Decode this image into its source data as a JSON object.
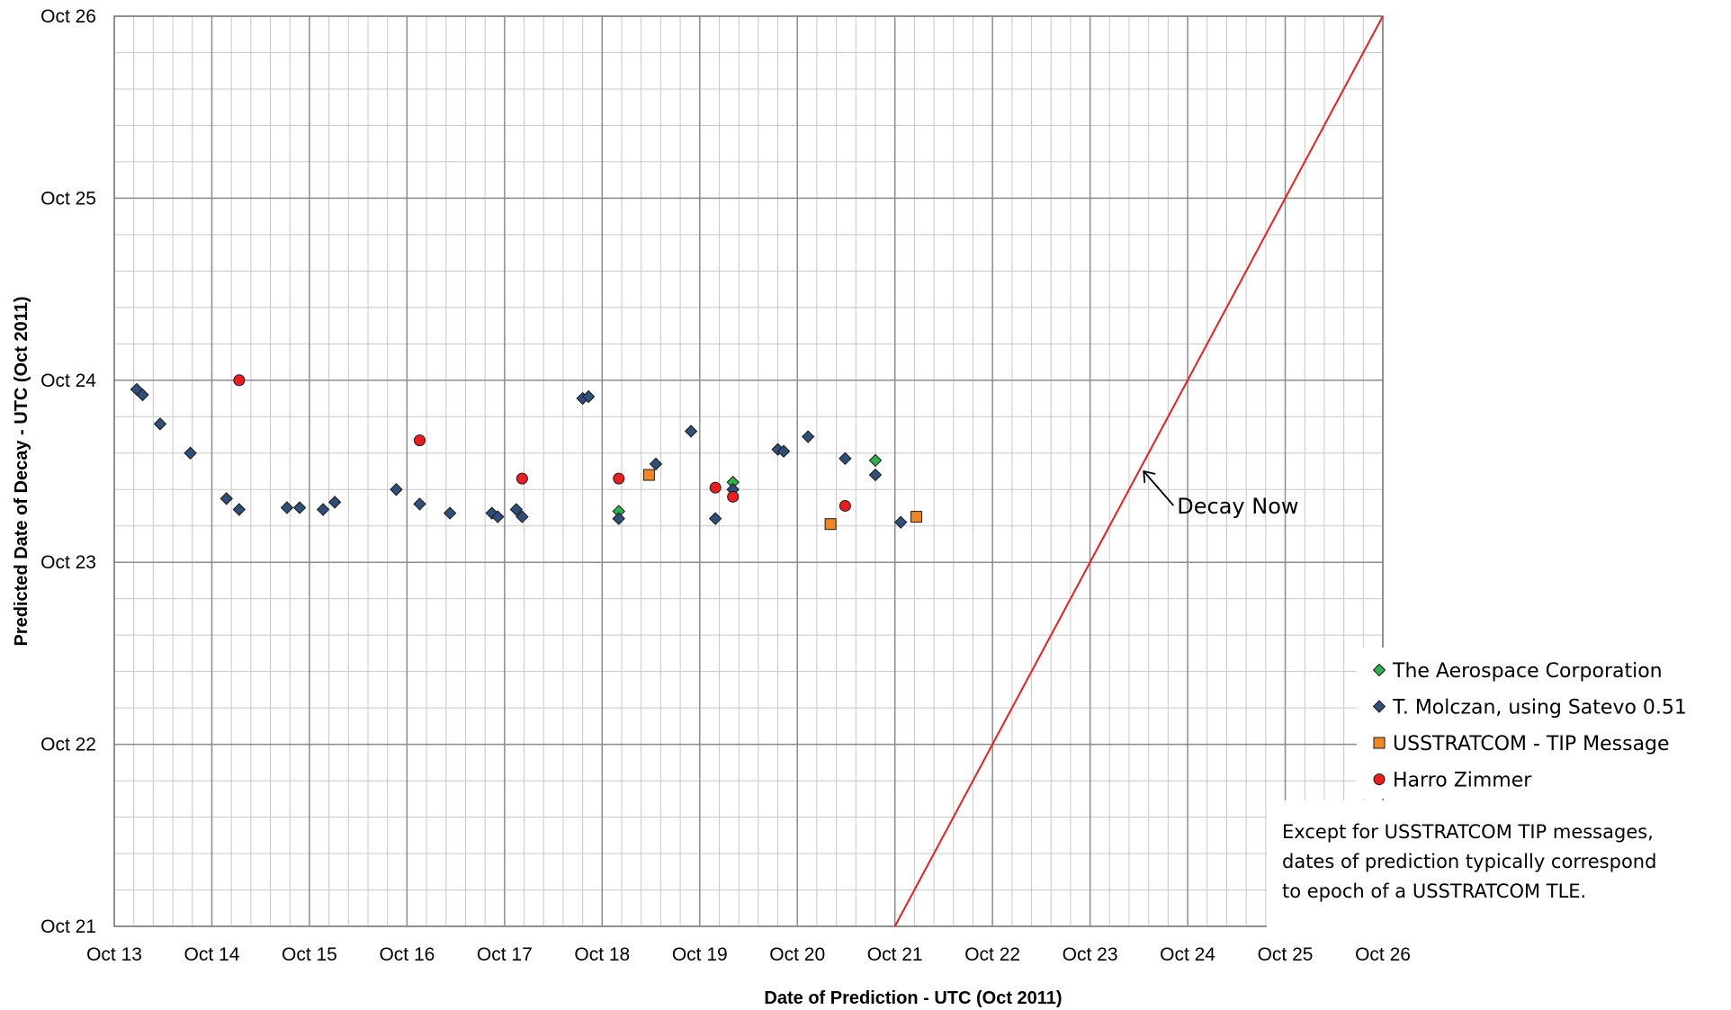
{
  "chart_data": {
    "type": "scatter",
    "title": "",
    "xlabel": "Date of Prediction - UTC (Oct 2011)",
    "ylabel": "Predicted Date of Decay - UTC (Oct 2011)",
    "xlim": [
      13,
      26
    ],
    "ylim": [
      21,
      26
    ],
    "x_ticks": [
      13,
      14,
      15,
      16,
      17,
      18,
      19,
      20,
      21,
      22,
      23,
      24,
      25,
      26
    ],
    "x_tick_labels": [
      "Oct 13",
      "Oct 14",
      "Oct 15",
      "Oct 16",
      "Oct 17",
      "Oct 18",
      "Oct 19",
      "Oct 20",
      "Oct 21",
      "Oct 22",
      "Oct 23",
      "Oct 24",
      "Oct 25",
      "Oct 26"
    ],
    "y_ticks": [
      21,
      22,
      23,
      24,
      25,
      26
    ],
    "y_tick_labels": [
      "Oct 21",
      "Oct 22",
      "Oct 23",
      "Oct 24",
      "Oct 25",
      "Oct 26"
    ],
    "grid": true,
    "legend_position": "bottom-right",
    "series": [
      {
        "name": "The Aerospace Corporation",
        "marker": "diamond",
        "color": "#2db34a",
        "points": [
          [
            18.17,
            23.28
          ],
          [
            19.34,
            23.44
          ],
          [
            20.8,
            23.56
          ]
        ]
      },
      {
        "name": "T. Molczan, using Satevo 0.51",
        "marker": "diamond",
        "color": "#2e4f7a",
        "points": [
          [
            13.23,
            23.95
          ],
          [
            13.29,
            23.92
          ],
          [
            13.47,
            23.76
          ],
          [
            13.78,
            23.6
          ],
          [
            14.15,
            23.35
          ],
          [
            14.28,
            23.29
          ],
          [
            14.77,
            23.3
          ],
          [
            14.9,
            23.3
          ],
          [
            15.14,
            23.29
          ],
          [
            15.26,
            23.33
          ],
          [
            15.89,
            23.4
          ],
          [
            16.13,
            23.32
          ],
          [
            16.44,
            23.27
          ],
          [
            16.87,
            23.27
          ],
          [
            16.93,
            23.25
          ],
          [
            17.12,
            23.29
          ],
          [
            17.18,
            23.25
          ],
          [
            17.8,
            23.9
          ],
          [
            17.86,
            23.91
          ],
          [
            18.17,
            23.24
          ],
          [
            18.55,
            23.54
          ],
          [
            18.91,
            23.72
          ],
          [
            19.16,
            23.24
          ],
          [
            19.34,
            23.4
          ],
          [
            19.8,
            23.62
          ],
          [
            19.86,
            23.61
          ],
          [
            20.11,
            23.69
          ],
          [
            20.49,
            23.57
          ],
          [
            20.8,
            23.48
          ],
          [
            21.06,
            23.22
          ]
        ]
      },
      {
        "name": "USSTRATCOM - TIP Message",
        "marker": "square",
        "color": "#f0861f",
        "points": [
          [
            18.48,
            23.48
          ],
          [
            20.34,
            23.21
          ],
          [
            21.22,
            23.25
          ]
        ]
      },
      {
        "name": "Harro Zimmer",
        "marker": "circle",
        "color": "#ee1c1c",
        "points": [
          [
            14.28,
            24.0
          ],
          [
            16.13,
            23.67
          ],
          [
            17.18,
            23.46
          ],
          [
            18.17,
            23.46
          ],
          [
            19.16,
            23.41
          ],
          [
            19.34,
            23.36
          ],
          [
            20.49,
            23.31
          ]
        ]
      }
    ],
    "reference_line": {
      "label": "Decay Now",
      "color": "#ee1c1c",
      "from": [
        21,
        21
      ],
      "to": [
        26,
        26
      ],
      "annotation_point": [
        23.55,
        23.5
      ]
    },
    "note": [
      "Except for USSTRATCOM TIP messages,",
      "dates of prediction typically correspond",
      "to epoch of a USSTRATCOM TLE."
    ]
  }
}
